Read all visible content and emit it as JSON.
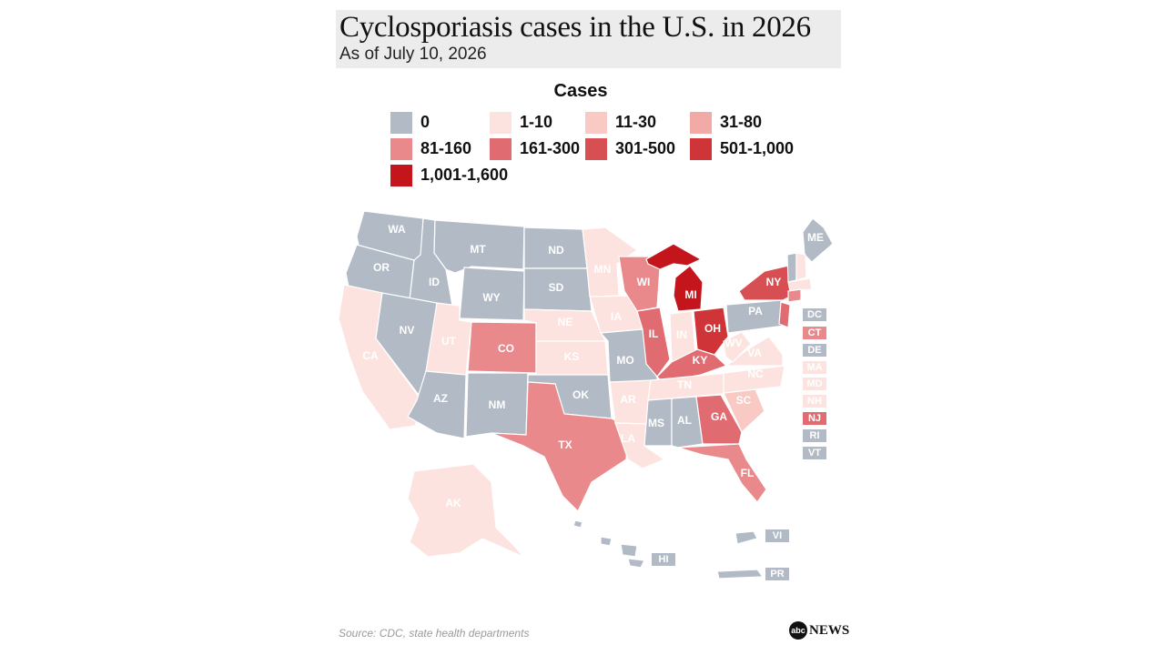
{
  "header": {
    "title": "Cyclosporiasis cases in the U.S. in 2026",
    "subtitle": "As of July 10, 2026"
  },
  "legend": {
    "title": "Cases",
    "bins": [
      {
        "label": "0",
        "color": "#b2bac6"
      },
      {
        "label": "1-10",
        "color": "#fde3df"
      },
      {
        "label": "11-30",
        "color": "#f9c9c4"
      },
      {
        "label": "31-80",
        "color": "#f2aaa7"
      },
      {
        "label": "81-160",
        "color": "#e9898b"
      },
      {
        "label": "161-300",
        "color": "#e06c71"
      },
      {
        "label": "301-500",
        "color": "#d84f53"
      },
      {
        "label": "501-1,000",
        "color": "#cf3438"
      },
      {
        "label": "1,001-1,600",
        "color": "#c4151c"
      }
    ]
  },
  "states": {
    "WA": {
      "label": "WA",
      "bin": "0"
    },
    "OR": {
      "label": "OR",
      "bin": "0"
    },
    "CA": {
      "label": "CA",
      "bin": "1-10"
    },
    "ID": {
      "label": "ID",
      "bin": "0"
    },
    "NV": {
      "label": "NV",
      "bin": "0"
    },
    "MT": {
      "label": "MT",
      "bin": "0"
    },
    "WY": {
      "label": "WY",
      "bin": "0"
    },
    "UT": {
      "label": "UT",
      "bin": "1-10"
    },
    "AZ": {
      "label": "AZ",
      "bin": "0"
    },
    "CO": {
      "label": "CO",
      "bin": "81-160"
    },
    "NM": {
      "label": "NM",
      "bin": "0"
    },
    "ND": {
      "label": "ND",
      "bin": "0"
    },
    "SD": {
      "label": "SD",
      "bin": "0"
    },
    "NE": {
      "label": "NE",
      "bin": "1-10"
    },
    "KS": {
      "label": "KS",
      "bin": "1-10"
    },
    "OK": {
      "label": "OK",
      "bin": "0"
    },
    "TX": {
      "label": "TX",
      "bin": "81-160"
    },
    "MN": {
      "label": "MN",
      "bin": "1-10"
    },
    "IA": {
      "label": "IA",
      "bin": "1-10"
    },
    "MO": {
      "label": "MO",
      "bin": "0"
    },
    "AR": {
      "label": "AR",
      "bin": "1-10"
    },
    "LA": {
      "label": "LA",
      "bin": "1-10"
    },
    "WI": {
      "label": "WI",
      "bin": "81-160"
    },
    "IL": {
      "label": "IL",
      "bin": "161-300"
    },
    "MI": {
      "label": "MI",
      "bin": "1,001-1,600"
    },
    "IN": {
      "label": "IN",
      "bin": "1-10"
    },
    "OH": {
      "label": "OH",
      "bin": "501-1,000"
    },
    "KY": {
      "label": "KY",
      "bin": "161-300"
    },
    "TN": {
      "label": "TN",
      "bin": "1-10"
    },
    "MS": {
      "label": "MS",
      "bin": "0"
    },
    "AL": {
      "label": "AL",
      "bin": "0"
    },
    "GA": {
      "label": "GA",
      "bin": "161-300"
    },
    "FL": {
      "label": "FL",
      "bin": "81-160"
    },
    "SC": {
      "label": "SC",
      "bin": "11-30"
    },
    "NC": {
      "label": "NC",
      "bin": "1-10"
    },
    "VA": {
      "label": "VA",
      "bin": "1-10"
    },
    "WV": {
      "label": "WV",
      "bin": "1-10"
    },
    "PA": {
      "label": "PA",
      "bin": "0"
    },
    "NY": {
      "label": "NY",
      "bin": "301-500"
    },
    "ME": {
      "label": "ME",
      "bin": "0"
    },
    "AK": {
      "label": "AK",
      "bin": "1-10"
    },
    "HI": {
      "label": "HI",
      "bin": "0"
    },
    "PR": {
      "label": "PR",
      "bin": "0"
    },
    "VI": {
      "label": "VI",
      "bin": "0"
    }
  },
  "small_states": [
    {
      "label": "DC",
      "bin": "0"
    },
    {
      "label": "CT",
      "bin": "81-160"
    },
    {
      "label": "DE",
      "bin": "0"
    },
    {
      "label": "MA",
      "bin": "1-10"
    },
    {
      "label": "MD",
      "bin": "1-10"
    },
    {
      "label": "NH",
      "bin": "1-10"
    },
    {
      "label": "NJ",
      "bin": "161-300"
    },
    {
      "label": "RI",
      "bin": "0"
    },
    {
      "label": "VT",
      "bin": "0"
    }
  ],
  "footer": {
    "source": "Source: CDC, state health departments",
    "logo_mark": "abc",
    "logo_text": "NEWS"
  }
}
